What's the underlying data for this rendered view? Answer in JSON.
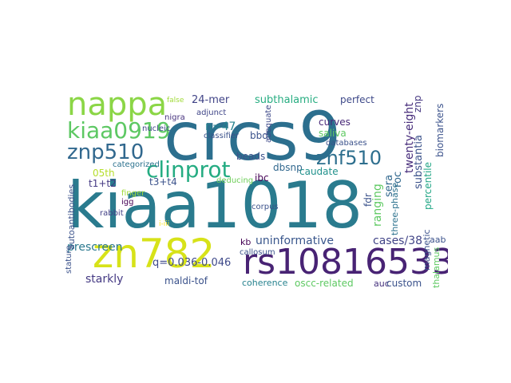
{
  "words": [
    {
      "text": "kiaa1018",
      "color": "#2a7b8e"
    },
    {
      "text": "crcs9",
      "color": "#2c6f8e"
    },
    {
      "text": "zn782",
      "color": "#d7e219"
    },
    {
      "text": "rs10816533",
      "color": "#482374"
    },
    {
      "text": "nappa",
      "color": "#8bd646"
    },
    {
      "text": "kiaa0919",
      "color": "#5dc863"
    },
    {
      "text": "znp510",
      "color": "#31688e"
    },
    {
      "text": "znf510",
      "color": "#2e6f8e"
    },
    {
      "text": "clinprot",
      "color": "#25ac82"
    },
    {
      "text": "24-mer",
      "color": "#414487"
    },
    {
      "text": "subthalamic",
      "color": "#27ad81"
    },
    {
      "text": "perfect",
      "color": "#3e4989"
    },
    {
      "text": "n=47",
      "color": "#26828e"
    },
    {
      "text": "classifier",
      "color": "#3b528b"
    },
    {
      "text": "bbd",
      "color": "#3b528b"
    },
    {
      "text": "curves",
      "color": "#482878"
    },
    {
      "text": "saliva",
      "color": "#5ec962"
    },
    {
      "text": "databases",
      "color": "#3b528b"
    },
    {
      "text": "dbsnp",
      "color": "#31688e"
    },
    {
      "text": "ibc",
      "color": "#440154"
    },
    {
      "text": "beads",
      "color": "#3b528b"
    },
    {
      "text": "nucleic",
      "color": "#3e4989"
    },
    {
      "text": "adjunct",
      "color": "#404688"
    },
    {
      "text": "nigra",
      "color": "#46327e"
    },
    {
      "text": "05th",
      "color": "#b5de2b"
    },
    {
      "text": "categorized",
      "color": "#2c728e"
    },
    {
      "text": "t1+t2",
      "color": "#443983"
    },
    {
      "text": "t3+t4",
      "color": "#3b528b"
    },
    {
      "text": "prescreen",
      "color": "#2a788e"
    },
    {
      "text": "deducing",
      "color": "#6ece58"
    },
    {
      "text": "caudate",
      "color": "#21918c"
    },
    {
      "text": "finger",
      "color": "#a0da39"
    },
    {
      "text": "igg",
      "color": "#440154"
    },
    {
      "text": "corpus",
      "color": "#3b528b"
    },
    {
      "text": "rabbit",
      "color": "#424086"
    },
    {
      "text": "i-iii",
      "color": "#fde725"
    },
    {
      "text": "uninformative",
      "color": "#39568c"
    },
    {
      "text": "cases/38",
      "color": "#414487"
    },
    {
      "text": "kb",
      "color": "#440154"
    },
    {
      "text": "callosum",
      "color": "#3b528b"
    },
    {
      "text": "q=0.036-0.046",
      "color": "#3e4989"
    },
    {
      "text": "starkly",
      "color": "#443983"
    },
    {
      "text": "maldi-tof",
      "color": "#3b528b"
    },
    {
      "text": "coherence",
      "color": "#26828e"
    },
    {
      "text": "oscc-related",
      "color": "#5ec962"
    },
    {
      "text": "auc",
      "color": "#46327e"
    },
    {
      "text": "custom",
      "color": "#3b528b"
    },
    {
      "text": "aab",
      "color": "#3b528b"
    },
    {
      "text": "sera",
      "color": "#31688e"
    },
    {
      "text": "twenty-eight",
      "color": "#472d7b"
    },
    {
      "text": "roc",
      "color": "#31688e"
    },
    {
      "text": "znp",
      "color": "#453781"
    },
    {
      "text": "substantia",
      "color": "#3b528b"
    },
    {
      "text": "percentile",
      "color": "#21a685"
    },
    {
      "text": "biomarkers",
      "color": "#3b528b"
    },
    {
      "text": "ranging",
      "color": "#5ec962"
    },
    {
      "text": "fdr",
      "color": "#3b528b"
    },
    {
      "text": "three-phase",
      "color": "#2c728e"
    },
    {
      "text": "magnetic",
      "color": "#3b528b"
    },
    {
      "text": "thalamus",
      "color": "#5ec962"
    },
    {
      "text": "autoantibodies",
      "color": "#3b528b"
    },
    {
      "text": "stature",
      "color": "#3b528b"
    },
    {
      "text": "adequate",
      "color": "#3e4989"
    },
    {
      "text": "false",
      "color": "#a0da39"
    }
  ]
}
